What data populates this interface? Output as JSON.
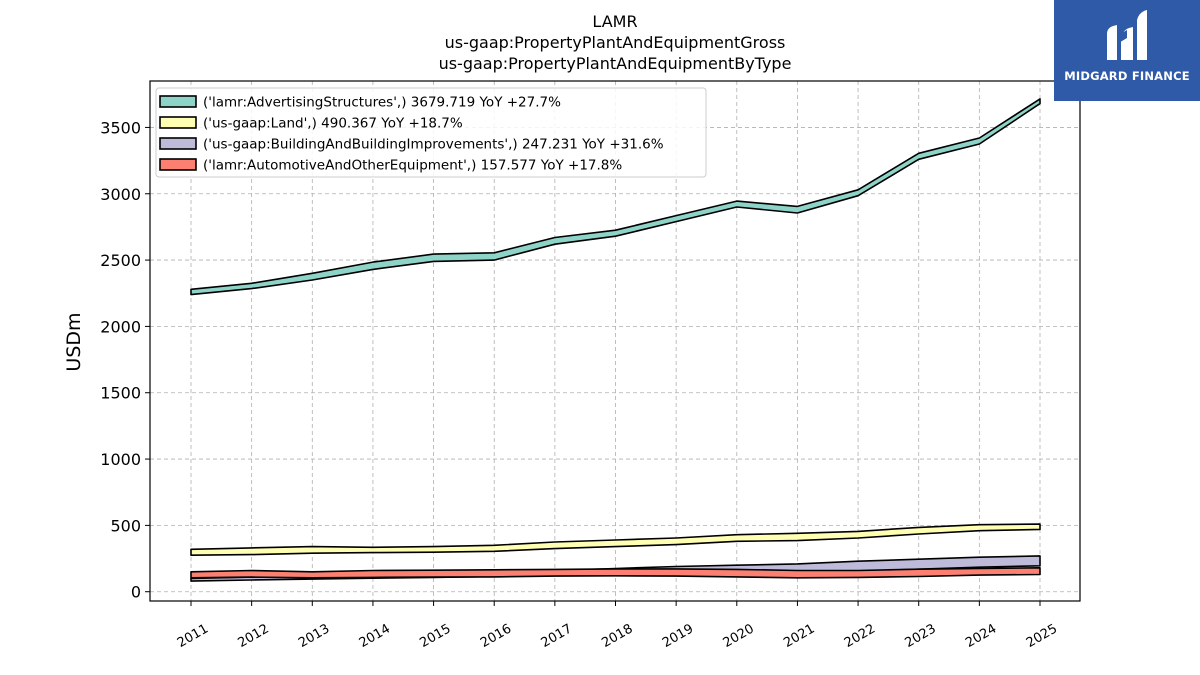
{
  "chart_data": {
    "type": "area",
    "title_lines": [
      "LAMR",
      "us-gaap:PropertyPlantAndEquipmentGross",
      "us-gaap:PropertyPlantAndEquipmentByType"
    ],
    "ylabel": "USDm",
    "xlabel": "",
    "ylim": [
      -70,
      3850
    ],
    "yticks": [
      0,
      500,
      1000,
      1500,
      2000,
      2500,
      3000,
      3500
    ],
    "grid": true,
    "legend_position": "top-left",
    "categories": [
      "2011",
      "2012",
      "2013",
      "2014",
      "2015",
      "2016",
      "2017",
      "2018",
      "2019",
      "2020",
      "2021",
      "2022",
      "2023",
      "2024",
      "2025"
    ],
    "series": [
      {
        "name": "('lamr:AdvertisingStructures',) 3679.719 YoY +27.7%",
        "color": "#8dd3c7",
        "lower": [
          2240,
          2285,
          2350,
          2430,
          2490,
          2500,
          2620,
          2680,
          2790,
          2900,
          2855,
          2985,
          3260,
          3375,
          3679.719
        ],
        "upper": [
          2280,
          2325,
          2400,
          2485,
          2545,
          2555,
          2670,
          2725,
          2835,
          2945,
          2905,
          3030,
          3305,
          3420,
          3715
        ]
      },
      {
        "name": "('us-gaap:Land',) 490.367 YoY +18.7%",
        "color": "#ffffb3",
        "lower": [
          275,
          280,
          290,
          295,
          298,
          305,
          325,
          340,
          355,
          380,
          385,
          405,
          435,
          460,
          470
        ],
        "upper": [
          320,
          330,
          340,
          335,
          340,
          350,
          375,
          390,
          405,
          430,
          440,
          455,
          485,
          505,
          510
        ]
      },
      {
        "name": "('us-gaap:BuildingAndBuildingImprovements',) 247.231 YoY +31.6%",
        "color": "#bebada",
        "lower": [
          80,
          88,
          95,
          102,
          108,
          115,
          125,
          135,
          140,
          145,
          150,
          155,
          170,
          185,
          195
        ],
        "upper": [
          100,
          110,
          120,
          130,
          140,
          150,
          160,
          175,
          190,
          200,
          210,
          230,
          245,
          260,
          270
        ]
      },
      {
        "name": "('lamr:AutomotiveAndOtherEquipment',) 157.577 YoY +17.8%",
        "color": "#fb8072",
        "lower": [
          105,
          110,
          105,
          108,
          110,
          112,
          118,
          120,
          118,
          112,
          105,
          108,
          115,
          125,
          130
        ],
        "upper": [
          150,
          160,
          150,
          160,
          162,
          165,
          168,
          172,
          172,
          168,
          160,
          160,
          170,
          175,
          180
        ]
      }
    ]
  },
  "logo": {
    "text": "MIDGARD FINANCE",
    "color": "#2f5aa8"
  }
}
